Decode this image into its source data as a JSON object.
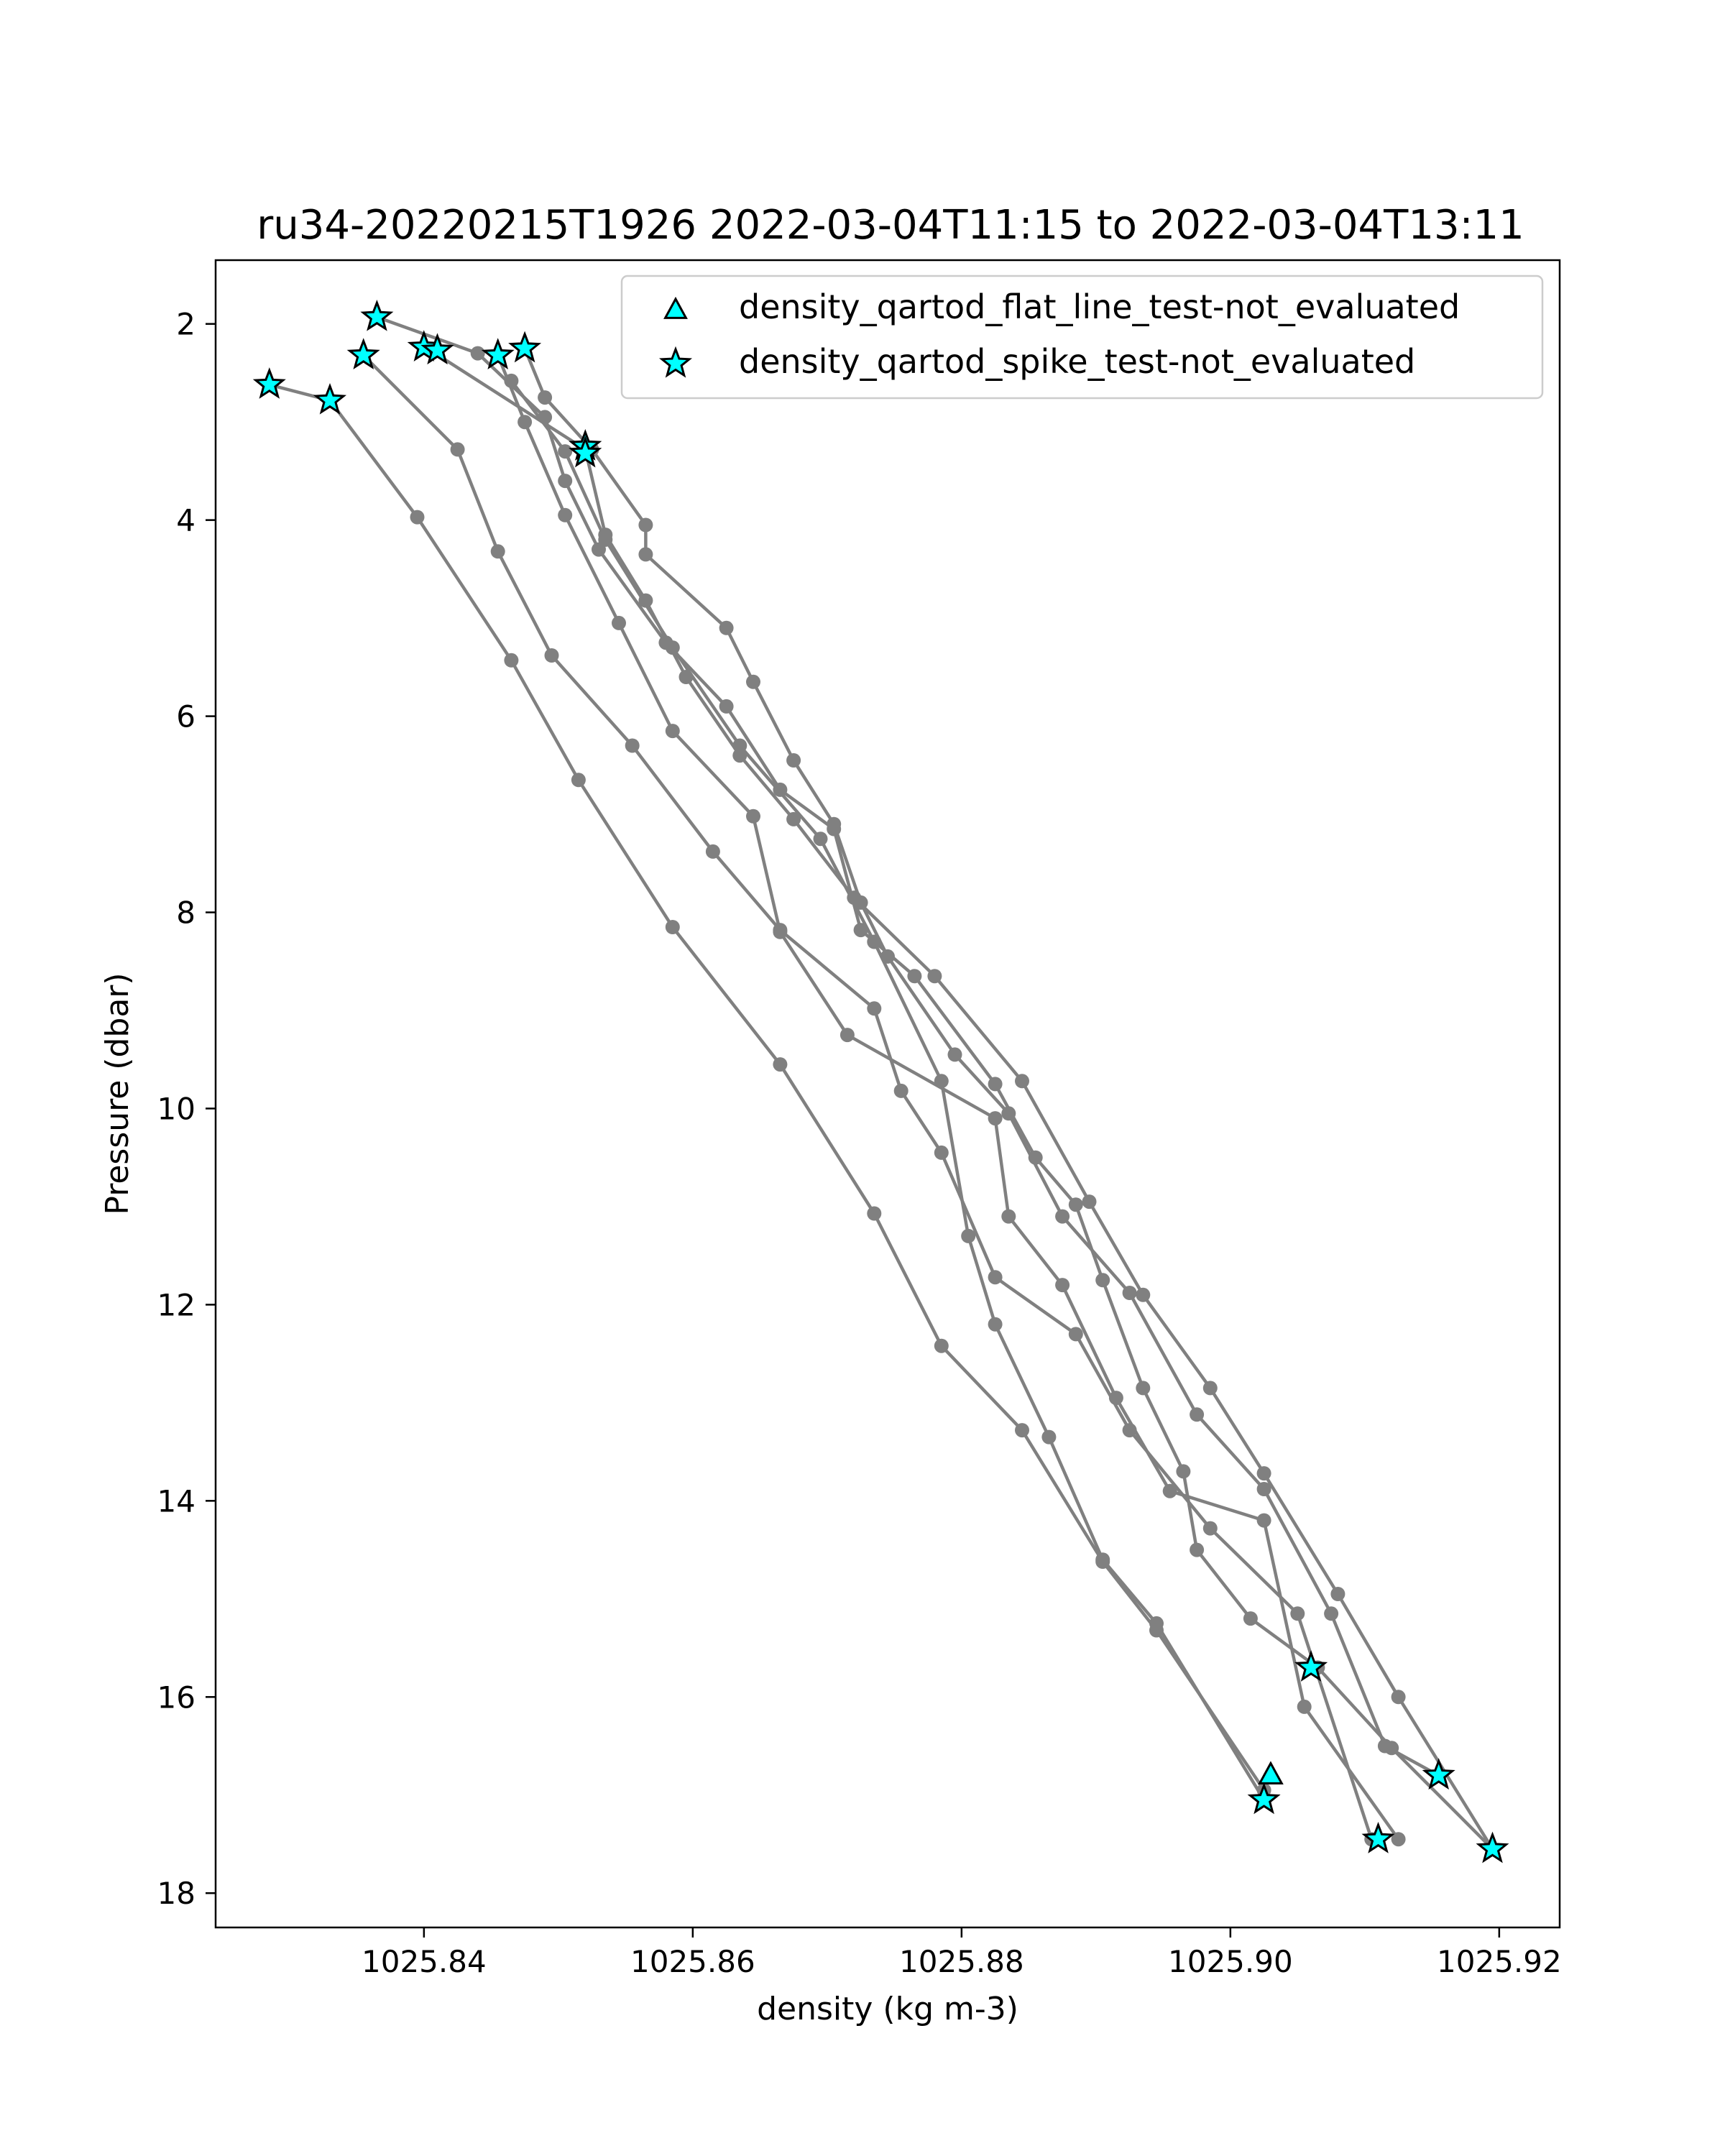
{
  "chart_data": {
    "type": "scatter",
    "title": "ru34-20220215T1926 2022-03-04T11:15 to 2022-03-04T13:11",
    "xlabel": "density (kg m-3)",
    "ylabel": "Pressure (dbar)",
    "xlim": [
      1025.8245,
      1025.9245
    ],
    "ylim": [
      18.35,
      1.35
    ],
    "y_inverted": true,
    "xticks": [
      1025.84,
      1025.86,
      1025.88,
      1025.9,
      1025.92
    ],
    "xtick_labels": [
      "1025.84",
      "1025.86",
      "1025.88",
      "1025.90",
      "1025.92"
    ],
    "yticks": [
      2,
      4,
      6,
      8,
      10,
      12,
      14,
      16,
      18
    ],
    "ytick_labels": [
      "2",
      "4",
      "6",
      "8",
      "10",
      "12",
      "14",
      "16",
      "18"
    ],
    "grid": false,
    "legend": {
      "position": "top-right",
      "entries": [
        {
          "label": "density_qartod_flat_line_test-not_evaluated",
          "marker": "triangle",
          "color": "#00ffff"
        },
        {
          "label": "density_qartod_spike_test-not_evaluated",
          "marker": "star",
          "color": "#00ffff"
        }
      ]
    },
    "profile_color": "#808080",
    "profiles": [
      {
        "points": [
          [
            1025.8365,
            1.93
          ],
          [
            1025.844,
            2.3
          ],
          [
            1025.849,
            2.95
          ],
          [
            1025.8505,
            3.6
          ],
          [
            1025.853,
            4.3
          ],
          [
            1025.858,
            5.25
          ],
          [
            1025.8625,
            5.9
          ],
          [
            1025.8665,
            6.75
          ],
          [
            1025.8705,
            7.15
          ],
          [
            1025.8725,
            8.18
          ],
          [
            1025.8765,
            8.65
          ],
          [
            1025.8825,
            9.75
          ],
          [
            1025.8855,
            10.5
          ],
          [
            1025.8885,
            10.98
          ],
          [
            1025.8905,
            11.75
          ],
          [
            1025.8935,
            12.85
          ],
          [
            1025.8965,
            13.7
          ],
          [
            1025.8975,
            14.5
          ],
          [
            1025.9015,
            15.2
          ],
          [
            1025.9065,
            15.7
          ],
          [
            1025.912,
            16.52
          ],
          [
            1025.9195,
            17.55
          ]
        ]
      },
      {
        "points": [
          [
            1025.8405,
            2.27
          ],
          [
            1025.852,
            3.28
          ],
          [
            1025.8535,
            4.15
          ],
          [
            1025.8565,
            4.82
          ],
          [
            1025.8595,
            5.6
          ],
          [
            1025.8635,
            6.4
          ],
          [
            1025.8675,
            7.05
          ],
          [
            1025.872,
            7.85
          ],
          [
            1025.878,
            8.65
          ],
          [
            1025.8845,
            9.72
          ],
          [
            1025.8895,
            10.95
          ],
          [
            1025.8935,
            11.9
          ],
          [
            1025.8985,
            12.85
          ],
          [
            1025.9025,
            13.72
          ],
          [
            1025.908,
            14.95
          ],
          [
            1025.9125,
            16.0
          ],
          [
            1025.9195,
            17.55
          ]
        ]
      },
      {
        "points": [
          [
            1025.8355,
            2.32
          ],
          [
            1025.8425,
            3.28
          ],
          [
            1025.8455,
            4.32
          ],
          [
            1025.8495,
            5.38
          ],
          [
            1025.8555,
            6.3
          ],
          [
            1025.8615,
            7.38
          ],
          [
            1025.8665,
            8.18
          ],
          [
            1025.8735,
            8.98
          ],
          [
            1025.8755,
            9.82
          ],
          [
            1025.8785,
            10.45
          ],
          [
            1025.8825,
            11.72
          ],
          [
            1025.8885,
            12.3
          ],
          [
            1025.8925,
            13.28
          ],
          [
            1025.8985,
            14.28
          ],
          [
            1025.905,
            15.15
          ],
          [
            1025.9105,
            17.45
          ]
        ]
      },
      {
        "points": [
          [
            1025.8285,
            2.62
          ],
          [
            1025.833,
            2.78
          ],
          [
            1025.8395,
            3.97
          ],
          [
            1025.8465,
            5.43
          ],
          [
            1025.8515,
            6.65
          ],
          [
            1025.8585,
            8.15
          ],
          [
            1025.8665,
            9.55
          ],
          [
            1025.8735,
            11.07
          ],
          [
            1025.8785,
            12.42
          ],
          [
            1025.8845,
            13.28
          ],
          [
            1025.8905,
            14.62
          ],
          [
            1025.8945,
            15.32
          ],
          [
            1025.9025,
            16.95
          ]
        ]
      },
      {
        "points": [
          [
            1025.8455,
            2.32
          ],
          [
            1025.8475,
            3.0
          ],
          [
            1025.8505,
            3.95
          ],
          [
            1025.8545,
            5.05
          ],
          [
            1025.8585,
            6.15
          ],
          [
            1025.8645,
            7.02
          ],
          [
            1025.8665,
            8.2
          ],
          [
            1025.8715,
            9.25
          ],
          [
            1025.8825,
            10.1
          ],
          [
            1025.8835,
            11.1
          ],
          [
            1025.8875,
            11.8
          ],
          [
            1025.8915,
            12.95
          ],
          [
            1025.8955,
            13.9
          ],
          [
            1025.9025,
            14.2
          ],
          [
            1025.9055,
            16.1
          ],
          [
            1025.9125,
            17.45
          ]
        ]
      },
      {
        "points": [
          [
            1025.8475,
            2.25
          ],
          [
            1025.849,
            2.75
          ],
          [
            1025.8525,
            3.28
          ],
          [
            1025.8565,
            4.05
          ],
          [
            1025.8565,
            4.35
          ],
          [
            1025.8625,
            5.1
          ],
          [
            1025.8645,
            5.65
          ],
          [
            1025.8675,
            6.45
          ],
          [
            1025.8705,
            7.1
          ],
          [
            1025.8725,
            7.9
          ],
          [
            1025.8745,
            8.45
          ],
          [
            1025.8795,
            9.45
          ],
          [
            1025.8835,
            10.05
          ],
          [
            1025.8875,
            11.1
          ],
          [
            1025.8925,
            11.88
          ],
          [
            1025.8975,
            13.12
          ],
          [
            1025.9025,
            13.88
          ],
          [
            1025.9075,
            15.15
          ],
          [
            1025.9115,
            16.5
          ],
          [
            1025.9155,
            16.8
          ]
        ]
      },
      {
        "points": [
          [
            1025.8465,
            2.58
          ],
          [
            1025.8505,
            3.3
          ],
          [
            1025.8535,
            4.2
          ],
          [
            1025.8585,
            5.3
          ],
          [
            1025.8635,
            6.3
          ],
          [
            1025.8695,
            7.25
          ],
          [
            1025.8735,
            8.3
          ],
          [
            1025.8785,
            9.72
          ],
          [
            1025.8805,
            11.3
          ],
          [
            1025.8825,
            12.2
          ],
          [
            1025.8865,
            13.35
          ],
          [
            1025.8905,
            14.6
          ],
          [
            1025.8945,
            15.25
          ],
          [
            1025.9025,
            17.05
          ]
        ]
      }
    ],
    "flat_line_markers": [
      [
        1025.903,
        16.8
      ]
    ],
    "spike_markers": [
      [
        1025.8365,
        1.93
      ],
      [
        1025.84,
        2.24
      ],
      [
        1025.841,
        2.27
      ],
      [
        1025.8355,
        2.32
      ],
      [
        1025.8285,
        2.62
      ],
      [
        1025.833,
        2.78
      ],
      [
        1025.8455,
        2.32
      ],
      [
        1025.8475,
        2.25
      ],
      [
        1025.852,
        3.25
      ],
      [
        1025.852,
        3.32
      ],
      [
        1025.906,
        15.7
      ],
      [
        1025.9025,
        17.05
      ],
      [
        1025.911,
        17.45
      ],
      [
        1025.9155,
        16.8
      ],
      [
        1025.9195,
        17.55
      ]
    ]
  }
}
